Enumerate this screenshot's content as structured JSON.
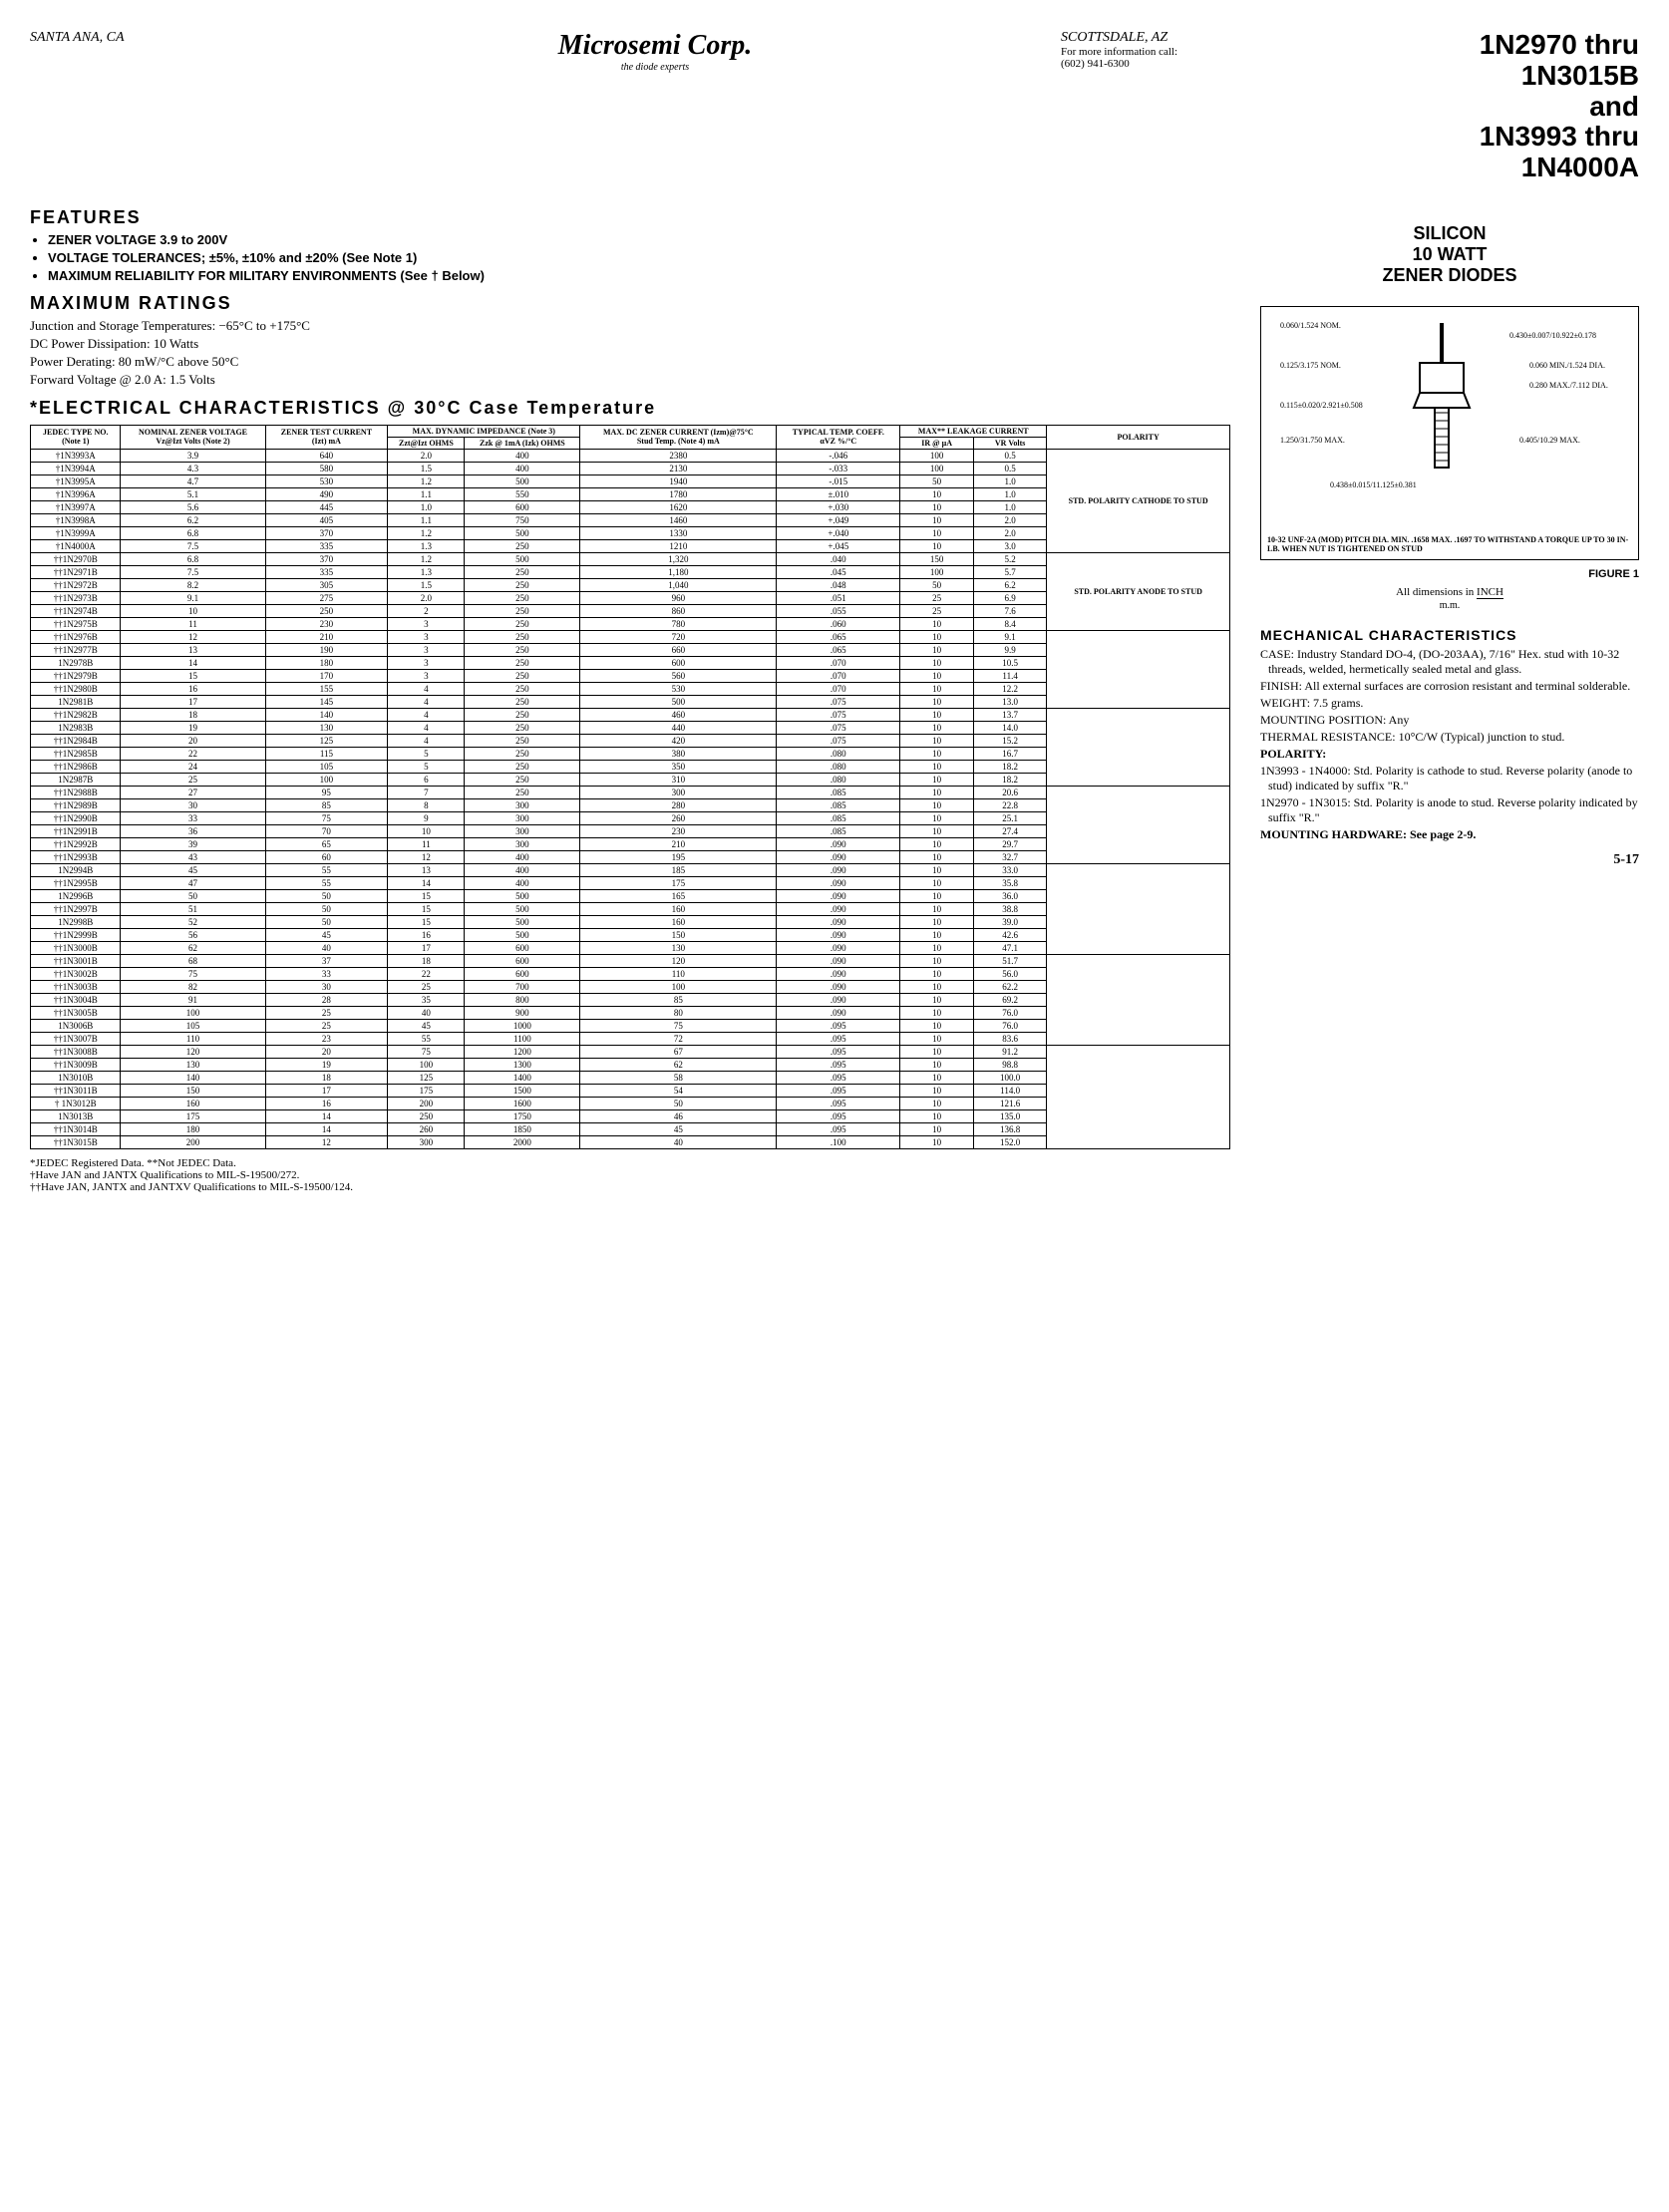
{
  "header": {
    "santa": "SANTA ANA, CA",
    "logo": "Microsemi Corp.",
    "tagline": "the diode experts",
    "scottsdale": "SCOTTSDALE, AZ",
    "scottsdale_line1": "For more information call:",
    "scottsdale_line2": "(602) 941-6300",
    "title_l1": "1N2970 thru",
    "title_l2": "1N3015B",
    "title_l3": "and",
    "title_l4": "1N3993 thru",
    "title_l5": "1N4000A"
  },
  "features": {
    "heading": "FEATURES",
    "items": [
      "ZENER VOLTAGE 3.9 to 200V",
      "VOLTAGE TOLERANCES; ±5%, ±10% and ±20% (See Note 1)",
      "MAXIMUM RELIABILITY FOR MILITARY ENVIRONMENTS (See † Below)"
    ]
  },
  "maxratings": {
    "heading": "MAXIMUM RATINGS",
    "l1": "Junction and Storage Temperatures: −65°C to +175°C",
    "l2": "DC Power Dissipation: 10 Watts",
    "l3": "Power Derating: 80 mW/°C above 50°C",
    "l4": "Forward Voltage @ 2.0 A: 1.5 Volts"
  },
  "elec_heading": "*ELECTRICAL CHARACTERISTICS @ 30°C Case Temperature",
  "columns": {
    "c1a": "JEDEC TYPE NO.",
    "c1b": "(Note 1)",
    "c2a": "NOMINAL ZENER VOLTAGE",
    "c2b": "Vz@Izt Volts (Note 2)",
    "c3a": "ZENER TEST CURRENT",
    "c3b": "(Izt) mA",
    "c4": "MAX. DYNAMIC IMPEDANCE (Note 3)",
    "c4a": "Zzt@Izt OHMS",
    "c4b": "Zzk @ 1mA (Izk) OHMS",
    "c5a": "MAX. DC ZENER CURRENT (Izm)@75°C",
    "c5b": "Stud Temp. (Note 4) mA",
    "c6a": "TYPICAL TEMP. COEFF.",
    "c6b": "αVZ %/°C",
    "c7": "MAX** LEAKAGE CURRENT",
    "c7a": "IR @ µA",
    "c7b": "VR Volts",
    "c8": "POLARITY"
  },
  "groups": [
    {
      "polarity": "STD. POLARITY CATHODE TO STUD",
      "rows": [
        [
          "†1N3993A",
          "3.9",
          "640",
          "2.0",
          "400",
          "2380",
          "-.046",
          "100",
          "0.5"
        ],
        [
          "†1N3994A",
          "4.3",
          "580",
          "1.5",
          "400",
          "2130",
          "-.033",
          "100",
          "0.5"
        ],
        [
          "†1N3995A",
          "4.7",
          "530",
          "1.2",
          "500",
          "1940",
          "-.015",
          "50",
          "1.0"
        ],
        [
          "†1N3996A",
          "5.1",
          "490",
          "1.1",
          "550",
          "1780",
          "±.010",
          "10",
          "1.0"
        ],
        [
          "†1N3997A",
          "5.6",
          "445",
          "1.0",
          "600",
          "1620",
          "+.030",
          "10",
          "1.0"
        ],
        [
          "†1N3998A",
          "6.2",
          "405",
          "1.1",
          "750",
          "1460",
          "+.049",
          "10",
          "2.0"
        ],
        [
          "†1N3999A",
          "6.8",
          "370",
          "1.2",
          "500",
          "1330",
          "+.040",
          "10",
          "2.0"
        ],
        [
          "†1N4000A",
          "7.5",
          "335",
          "1.3",
          "250",
          "1210",
          "+.045",
          "10",
          "3.0"
        ]
      ]
    },
    {
      "polarity": "STD. POLARITY ANODE TO STUD",
      "rows": [
        [
          "††1N2970B",
          "6.8",
          "370",
          "1.2",
          "500",
          "1,320",
          ".040",
          "150",
          "5.2"
        ],
        [
          "††1N2971B",
          "7.5",
          "335",
          "1.3",
          "250",
          "1,180",
          ".045",
          "100",
          "5.7"
        ],
        [
          "††1N2972B",
          "8.2",
          "305",
          "1.5",
          "250",
          "1,040",
          ".048",
          "50",
          "6.2"
        ],
        [
          "††1N2973B",
          "9.1",
          "275",
          "2.0",
          "250",
          "960",
          ".051",
          "25",
          "6.9"
        ],
        [
          "††1N2974B",
          "10",
          "250",
          "2",
          "250",
          "860",
          ".055",
          "25",
          "7.6"
        ],
        [
          "††1N2975B",
          "11",
          "230",
          "3",
          "250",
          "780",
          ".060",
          "10",
          "8.4"
        ]
      ]
    },
    {
      "polarity": "",
      "rows": [
        [
          "††1N2976B",
          "12",
          "210",
          "3",
          "250",
          "720",
          ".065",
          "10",
          "9.1"
        ],
        [
          "††1N2977B",
          "13",
          "190",
          "3",
          "250",
          "660",
          ".065",
          "10",
          "9.9"
        ],
        [
          "1N2978B",
          "14",
          "180",
          "3",
          "250",
          "600",
          ".070",
          "10",
          "10.5"
        ],
        [
          "††1N2979B",
          "15",
          "170",
          "3",
          "250",
          "560",
          ".070",
          "10",
          "11.4"
        ],
        [
          "††1N2980B",
          "16",
          "155",
          "4",
          "250",
          "530",
          ".070",
          "10",
          "12.2"
        ],
        [
          "1N2981B",
          "17",
          "145",
          "4",
          "250",
          "500",
          ".075",
          "10",
          "13.0"
        ]
      ]
    },
    {
      "polarity": "",
      "rows": [
        [
          "††1N2982B",
          "18",
          "140",
          "4",
          "250",
          "460",
          ".075",
          "10",
          "13.7"
        ],
        [
          "1N2983B",
          "19",
          "130",
          "4",
          "250",
          "440",
          ".075",
          "10",
          "14.0"
        ],
        [
          "††1N2984B",
          "20",
          "125",
          "4",
          "250",
          "420",
          ".075",
          "10",
          "15.2"
        ],
        [
          "††1N2985B",
          "22",
          "115",
          "5",
          "250",
          "380",
          ".080",
          "10",
          "16.7"
        ],
        [
          "††1N2986B",
          "24",
          "105",
          "5",
          "250",
          "350",
          ".080",
          "10",
          "18.2"
        ],
        [
          "1N2987B",
          "25",
          "100",
          "6",
          "250",
          "310",
          ".080",
          "10",
          "18.2"
        ]
      ]
    },
    {
      "polarity": "",
      "rows": [
        [
          "††1N2988B",
          "27",
          "95",
          "7",
          "250",
          "300",
          ".085",
          "10",
          "20.6"
        ],
        [
          "††1N2989B",
          "30",
          "85",
          "8",
          "300",
          "280",
          ".085",
          "10",
          "22.8"
        ],
        [
          "††1N2990B",
          "33",
          "75",
          "9",
          "300",
          "260",
          ".085",
          "10",
          "25.1"
        ],
        [
          "††1N2991B",
          "36",
          "70",
          "10",
          "300",
          "230",
          ".085",
          "10",
          "27.4"
        ],
        [
          "††1N2992B",
          "39",
          "65",
          "11",
          "300",
          "210",
          ".090",
          "10",
          "29.7"
        ],
        [
          "††1N2993B",
          "43",
          "60",
          "12",
          "400",
          "195",
          ".090",
          "10",
          "32.7"
        ]
      ]
    },
    {
      "polarity": "",
      "rows": [
        [
          "1N2994B",
          "45",
          "55",
          "13",
          "400",
          "185",
          ".090",
          "10",
          "33.0"
        ],
        [
          "††1N2995B",
          "47",
          "55",
          "14",
          "400",
          "175",
          ".090",
          "10",
          "35.8"
        ],
        [
          "1N2996B",
          "50",
          "50",
          "15",
          "500",
          "165",
          ".090",
          "10",
          "36.0"
        ],
        [
          "††1N2997B",
          "51",
          "50",
          "15",
          "500",
          "160",
          ".090",
          "10",
          "38.8"
        ],
        [
          "1N2998B",
          "52",
          "50",
          "15",
          "500",
          "160",
          ".090",
          "10",
          "39.0"
        ],
        [
          "††1N2999B",
          "56",
          "45",
          "16",
          "500",
          "150",
          ".090",
          "10",
          "42.6"
        ],
        [
          "††1N3000B",
          "62",
          "40",
          "17",
          "600",
          "130",
          ".090",
          "10",
          "47.1"
        ]
      ]
    },
    {
      "polarity": "",
      "rows": [
        [
          "††1N3001B",
          "68",
          "37",
          "18",
          "600",
          "120",
          ".090",
          "10",
          "51.7"
        ],
        [
          "††1N3002B",
          "75",
          "33",
          "22",
          "600",
          "110",
          ".090",
          "10",
          "56.0"
        ],
        [
          "††1N3003B",
          "82",
          "30",
          "25",
          "700",
          "100",
          ".090",
          "10",
          "62.2"
        ],
        [
          "††1N3004B",
          "91",
          "28",
          "35",
          "800",
          "85",
          ".090",
          "10",
          "69.2"
        ],
        [
          "††1N3005B",
          "100",
          "25",
          "40",
          "900",
          "80",
          ".090",
          "10",
          "76.0"
        ],
        [
          "1N3006B",
          "105",
          "25",
          "45",
          "1000",
          "75",
          ".095",
          "10",
          "76.0"
        ],
        [
          "††1N3007B",
          "110",
          "23",
          "55",
          "1100",
          "72",
          ".095",
          "10",
          "83.6"
        ]
      ]
    },
    {
      "polarity": "",
      "rows": [
        [
          "††1N3008B",
          "120",
          "20",
          "75",
          "1200",
          "67",
          ".095",
          "10",
          "91.2"
        ],
        [
          "††1N3009B",
          "130",
          "19",
          "100",
          "1300",
          "62",
          ".095",
          "10",
          "98.8"
        ],
        [
          "1N3010B",
          "140",
          "18",
          "125",
          "1400",
          "58",
          ".095",
          "10",
          "100.0"
        ],
        [
          "††1N3011B",
          "150",
          "17",
          "175",
          "1500",
          "54",
          ".095",
          "10",
          "114.0"
        ],
        [
          "† 1N3012B",
          "160",
          "16",
          "200",
          "1600",
          "50",
          ".095",
          "10",
          "121.6"
        ],
        [
          "1N3013B",
          "175",
          "14",
          "250",
          "1750",
          "46",
          ".095",
          "10",
          "135.0"
        ],
        [
          "††1N3014B",
          "180",
          "14",
          "260",
          "1850",
          "45",
          ".095",
          "10",
          "136.8"
        ],
        [
          "††1N3015B",
          "200",
          "12",
          "300",
          "2000",
          "40",
          ".100",
          "10",
          "152.0"
        ]
      ]
    }
  ],
  "notes": {
    "n1": "*JEDEC Registered Data.    **Not JEDEC Data.",
    "n2": "†Have JAN and JANTX Qualifications to MIL-S-19500/272.",
    "n3": "††Have JAN, JANTX and JANTXV Qualifications to MIL-S-19500/124."
  },
  "silicon": {
    "l1": "SILICON",
    "l2": "10 WATT",
    "l3": "ZENER DIODES"
  },
  "pkg": {
    "dims": [
      "0.060 / 1.524 NOM.",
      "0.430 ± 0.007 / 10.922 ± 0.178",
      "0.125 / 3.175 NOM.",
      "0.060 MIN. / 1.524 DIA.",
      "0.280 MAX. / 7.112 DIA.",
      "0.115 ± 0.020 / 2.921 ± 0.508",
      "1.250 / 31.750 MAX.",
      "0.405 / 10.29 MAX.",
      "0.438 ± 0.015 / 11.125 ± 0.381"
    ],
    "thread": "10-32 UNF-2A (MOD) PITCH DIA. MIN. .1658 MAX. .1697 TO WITHSTAND A TORQUE UP TO 30 IN-LB. WHEN NUT IS TIGHTENED ON STUD",
    "caption": "FIGURE 1",
    "dimnote_l1": "All dimensions in ",
    "dimnote_l2": "INCH",
    "dimnote_l3": "m.m."
  },
  "mech": {
    "heading": "MECHANICAL CHARACTERISTICS",
    "case": "CASE: Industry Standard DO-4, (DO-203AA), 7/16\" Hex. stud with 10-32 threads, welded, hermetically sealed metal and glass.",
    "finish": "FINISH: All external surfaces are corrosion resistant and terminal solderable.",
    "weight": "WEIGHT: 7.5 grams.",
    "mount": "MOUNTING POSITION: Any",
    "thermal": "THERMAL RESISTANCE: 10°C/W (Typical) junction to stud.",
    "polarity_h": "POLARITY:",
    "pol1": "1N3993 - 1N4000: Std. Polarity is cathode to stud. Reverse polarity (anode to stud) indicated by suffix \"R.\"",
    "pol2": "1N2970 - 1N3015: Std. Polarity is anode to stud. Reverse polarity indicated by suffix \"R.\"",
    "hw": "MOUNTING HARDWARE: See page 2-9."
  },
  "page": "5-17"
}
